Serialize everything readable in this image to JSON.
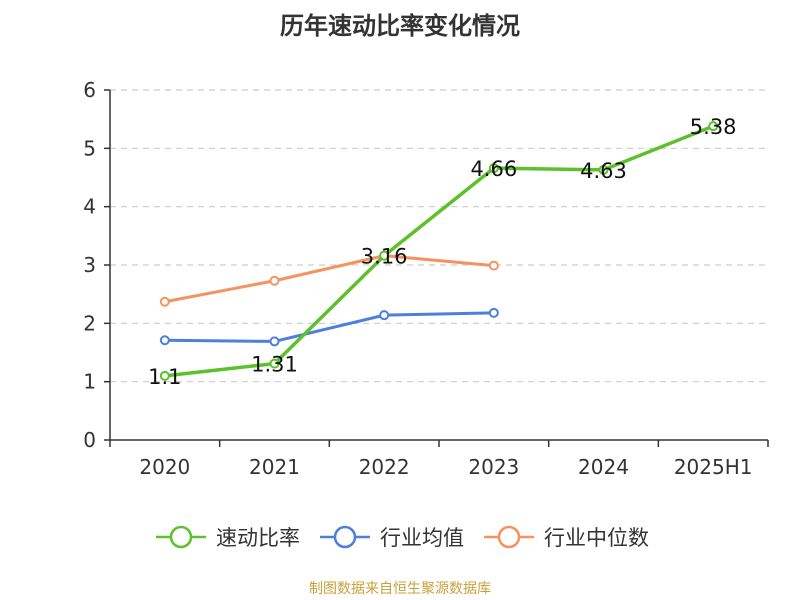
{
  "chart_data": {
    "type": "line",
    "title": "历年速动比率变化情况",
    "xlabel": "",
    "ylabel": "",
    "categories": [
      "2020",
      "2021",
      "2022",
      "2023",
      "2024",
      "2025H1"
    ],
    "ylim": [
      0,
      6
    ],
    "yticks": [
      0,
      1,
      2,
      3,
      4,
      5,
      6
    ],
    "grid": true,
    "legend_position": "bottom",
    "series": [
      {
        "name": "速动比率",
        "color": "#5cc12a",
        "values": [
          1.1,
          1.31,
          3.16,
          4.66,
          4.63,
          5.38
        ],
        "labels": [
          "1.1",
          "1.31",
          "3.16",
          "4.66",
          "4.63",
          "5.38"
        ]
      },
      {
        "name": "行业均值",
        "color": "#4d7fdb",
        "values": [
          1.71,
          1.69,
          2.14,
          2.18,
          null,
          null
        ]
      },
      {
        "name": "行业中位数",
        "color": "#f5925e",
        "values": [
          2.37,
          2.73,
          3.16,
          2.99,
          null,
          null
        ]
      }
    ]
  },
  "source_note": "制图数据来自恒生聚源数据库"
}
